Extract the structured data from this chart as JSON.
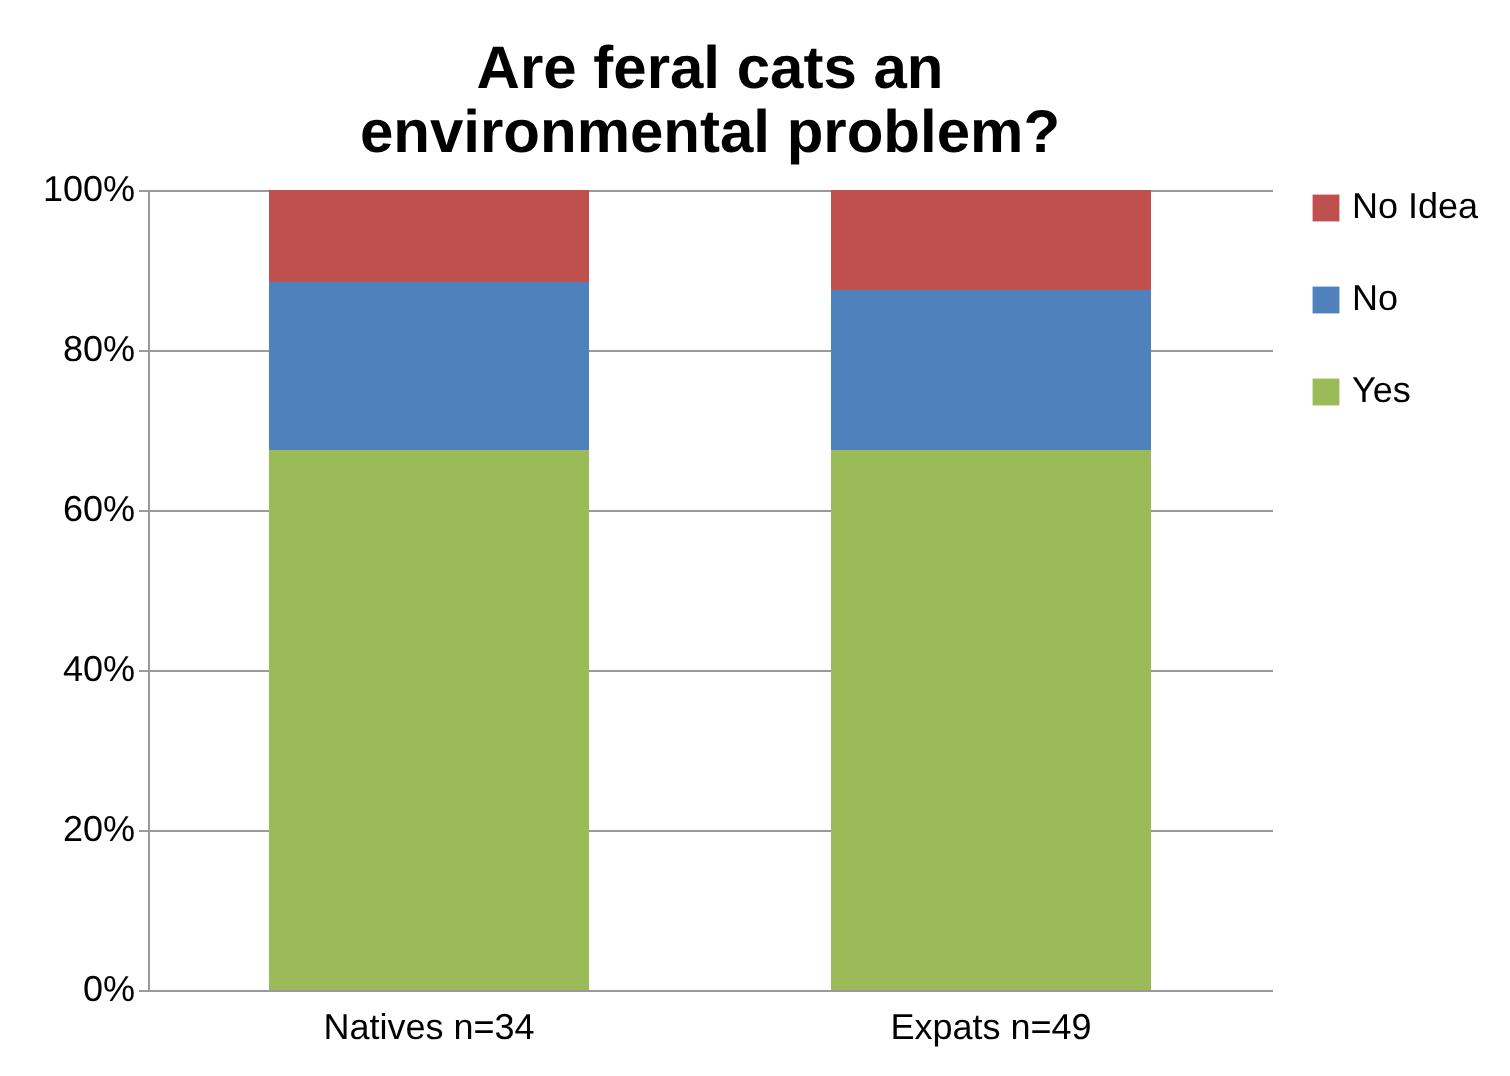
{
  "chart_data": {
    "type": "bar",
    "title": "Are feral cats an environmental problem?",
    "stacked": true,
    "categories": [
      "Natives n=34",
      "Expats n=49"
    ],
    "series": [
      {
        "name": "Yes",
        "color": "#9bbb59",
        "values": [
          67.5,
          67.5
        ]
      },
      {
        "name": "No",
        "color": "#4f81bd",
        "values": [
          21,
          20
        ]
      },
      {
        "name": "No Idea",
        "color": "#c0504d",
        "values": [
          11.5,
          12.5
        ]
      }
    ],
    "ylim": [
      0,
      100
    ],
    "yticks": [
      {
        "value": 0,
        "label": "0%"
      },
      {
        "value": 20,
        "label": "20%"
      },
      {
        "value": 40,
        "label": "40%"
      },
      {
        "value": 60,
        "label": "60%"
      },
      {
        "value": 80,
        "label": "80%"
      },
      {
        "value": 100,
        "label": "100%"
      }
    ],
    "grid": "y",
    "legend": "right"
  }
}
